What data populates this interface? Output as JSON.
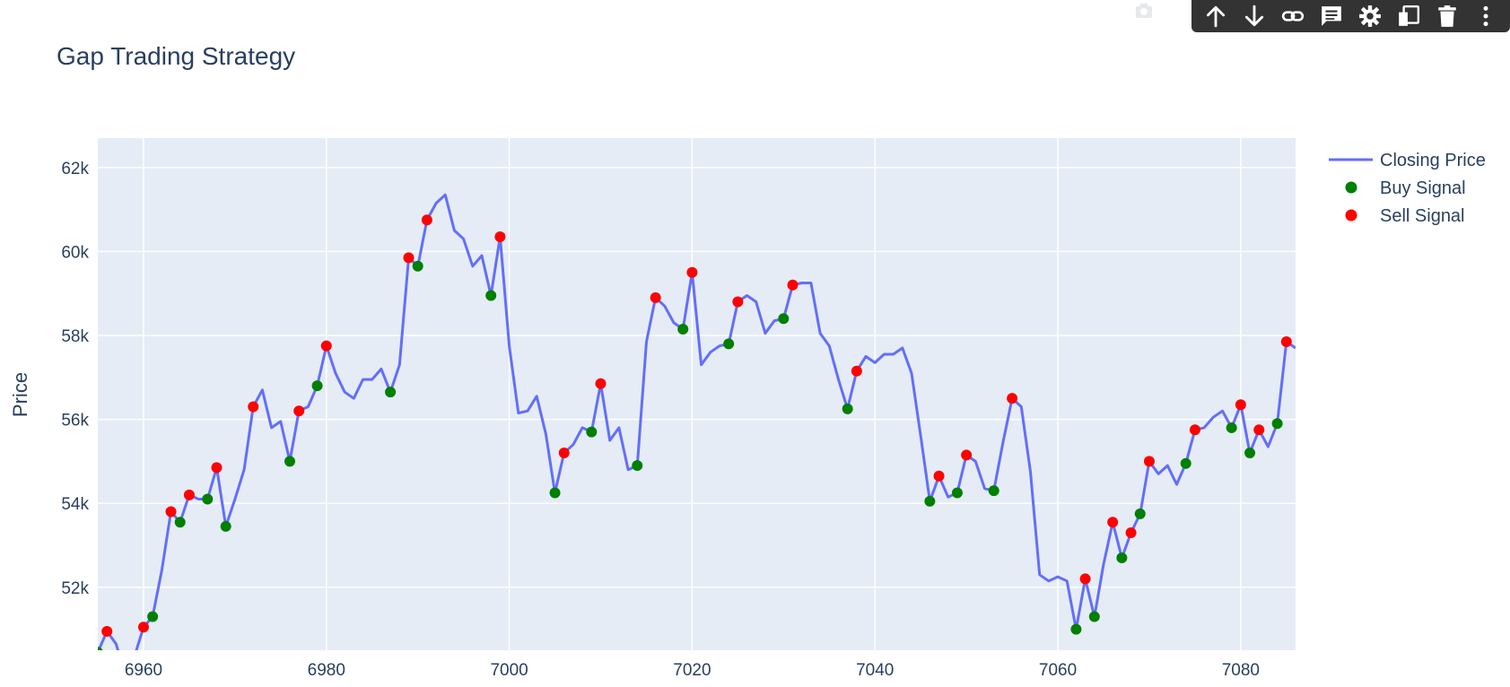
{
  "chart_data": {
    "type": "line",
    "title": "Gap Trading Strategy",
    "xlabel": "",
    "ylabel": "Price",
    "xlim": [
      6955,
      7086
    ],
    "ylim": [
      50500,
      62700
    ],
    "x_ticks": [
      6960,
      6980,
      7000,
      7020,
      7040,
      7060,
      7080
    ],
    "x_tick_labels": [
      "6960",
      "6980",
      "7000",
      "7020",
      "7040",
      "7060",
      "7080"
    ],
    "y_ticks": [
      52000,
      54000,
      56000,
      58000,
      60000,
      62000
    ],
    "y_tick_labels": [
      "52k",
      "54k",
      "56k",
      "58k",
      "60k",
      "62k"
    ],
    "grid": true,
    "legend_position": "top-right",
    "series": [
      {
        "name": "Closing Price",
        "mode": "line",
        "color": "#636efa",
        "x": [
          6955,
          6956,
          6957,
          6958,
          6959,
          6960,
          6961,
          6962,
          6963,
          6964,
          6965,
          6966,
          6967,
          6968,
          6969,
          6970,
          6971,
          6972,
          6973,
          6974,
          6975,
          6976,
          6977,
          6978,
          6979,
          6980,
          6981,
          6982,
          6983,
          6984,
          6985,
          6986,
          6987,
          6988,
          6989,
          6990,
          6991,
          6992,
          6993,
          6994,
          6995,
          6996,
          6997,
          6998,
          6999,
          7000,
          7001,
          7002,
          7003,
          7004,
          7005,
          7006,
          7007,
          7008,
          7009,
          7010,
          7011,
          7012,
          7013,
          7014,
          7015,
          7016,
          7017,
          7018,
          7019,
          7020,
          7021,
          7022,
          7023,
          7024,
          7025,
          7026,
          7027,
          7028,
          7029,
          7030,
          7031,
          7032,
          7033,
          7034,
          7035,
          7036,
          7037,
          7038,
          7039,
          7040,
          7041,
          7042,
          7043,
          7044,
          7045,
          7046,
          7047,
          7048,
          7049,
          7050,
          7051,
          7052,
          7053,
          7054,
          7055,
          7056,
          7057,
          7058,
          7059,
          7060,
          7061,
          7062,
          7063,
          7064,
          7065,
          7066,
          7067,
          7068,
          7069,
          7070,
          7071,
          7072,
          7073,
          7074,
          7075,
          7076,
          7077,
          7078,
          7079,
          7080,
          7081,
          7082,
          7083,
          7084,
          7085,
          7086
        ],
        "y": [
          50450,
          50950,
          50650,
          49900,
          50350,
          51050,
          51300,
          52400,
          53800,
          53550,
          54200,
          54100,
          54100,
          54850,
          53450,
          54100,
          54800,
          56300,
          56700,
          55800,
          55950,
          55000,
          56200,
          56300,
          56800,
          57750,
          57100,
          56650,
          56500,
          56950,
          56950,
          57200,
          56650,
          57300,
          59850,
          59650,
          60750,
          61150,
          61350,
          60500,
          60300,
          59650,
          59900,
          58950,
          60350,
          57750,
          56150,
          56200,
          56550,
          55650,
          54250,
          55200,
          55400,
          55800,
          55700,
          56850,
          55500,
          55800,
          54800,
          54900,
          57850,
          58900,
          58700,
          58300,
          58150,
          59500,
          57300,
          57600,
          57750,
          57800,
          58800,
          58950,
          58800,
          58050,
          58350,
          58400,
          59200,
          59250,
          59250,
          58050,
          57750,
          56950,
          56250,
          57150,
          57500,
          57350,
          57550,
          57550,
          57700,
          57100,
          55600,
          54050,
          54650,
          54150,
          54250,
          55150,
          55000,
          54350,
          54300,
          55450,
          56500,
          56300,
          54750,
          52300,
          52150,
          52250,
          52150,
          51000,
          52200,
          51300,
          52550,
          53550,
          52700,
          53300,
          53750,
          55000,
          54700,
          54900,
          54450,
          54950,
          55750,
          55800,
          56050,
          56200,
          55800,
          56350,
          55200,
          55750,
          55350,
          55900,
          57850,
          57700
        ]
      },
      {
        "name": "Buy Signal",
        "mode": "markers",
        "color": "#008000",
        "x": [
          6955,
          6961,
          6964,
          6967,
          6969,
          6976,
          6979,
          6987,
          6990,
          6998,
          7005,
          7009,
          7014,
          7019,
          7024,
          7030,
          7037,
          7046,
          7049,
          7053,
          7062,
          7064,
          7067,
          7069,
          7074,
          7079,
          7081,
          7084
        ],
        "y": [
          50450,
          51300,
          53550,
          54100,
          53450,
          55000,
          56800,
          56650,
          59650,
          58950,
          54250,
          55700,
          54900,
          58150,
          57800,
          58400,
          56250,
          54050,
          54250,
          54300,
          51000,
          51300,
          52700,
          53750,
          54950,
          55800,
          55200,
          55900
        ]
      },
      {
        "name": "Sell Signal",
        "mode": "markers",
        "color": "#ff0000",
        "x": [
          6956,
          6960,
          6963,
          6965,
          6968,
          6972,
          6977,
          6980,
          6989,
          6991,
          6999,
          7006,
          7010,
          7016,
          7020,
          7025,
          7031,
          7038,
          7047,
          7050,
          7055,
          7063,
          7066,
          7068,
          7070,
          7075,
          7080,
          7082,
          7085
        ],
        "y": [
          50950,
          51050,
          53800,
          54200,
          54850,
          56300,
          56200,
          57750,
          59850,
          60750,
          60350,
          55200,
          56850,
          58900,
          59500,
          58800,
          59200,
          57150,
          54650,
          55150,
          56500,
          52200,
          53550,
          53300,
          55000,
          55750,
          56350,
          55750,
          57850
        ]
      }
    ]
  },
  "modebar": {
    "buttons": [
      "arrow-up-icon",
      "arrow-down-icon",
      "link-icon",
      "comment-icon",
      "gear-icon",
      "copy-icon",
      "trash-icon",
      "more-vertical-icon"
    ]
  }
}
